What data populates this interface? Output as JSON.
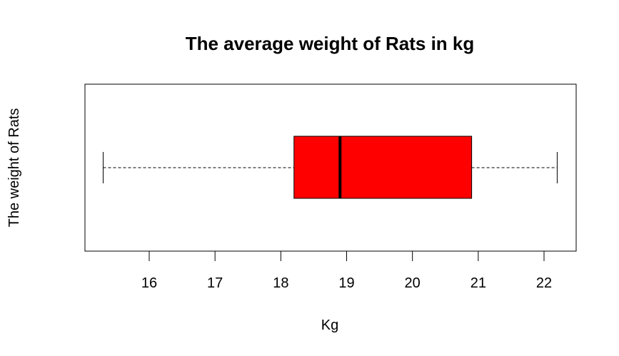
{
  "chart_data": {
    "type": "boxplot",
    "orientation": "horizontal",
    "title": "The average weight of Rats in kg",
    "xlabel": "Kg",
    "ylabel": "The weight of Rats",
    "xlim": [
      15,
      22.5
    ],
    "ticks": [
      16,
      17,
      18,
      19,
      20,
      21,
      22
    ],
    "tick_labels": [
      "16",
      "17",
      "18",
      "19",
      "20",
      "21",
      "22"
    ],
    "box": {
      "min": 15.3,
      "q1": 18.2,
      "median": 18.9,
      "q3": 20.9,
      "max": 22.2
    },
    "box_color": "#ff0000",
    "grid": false
  }
}
